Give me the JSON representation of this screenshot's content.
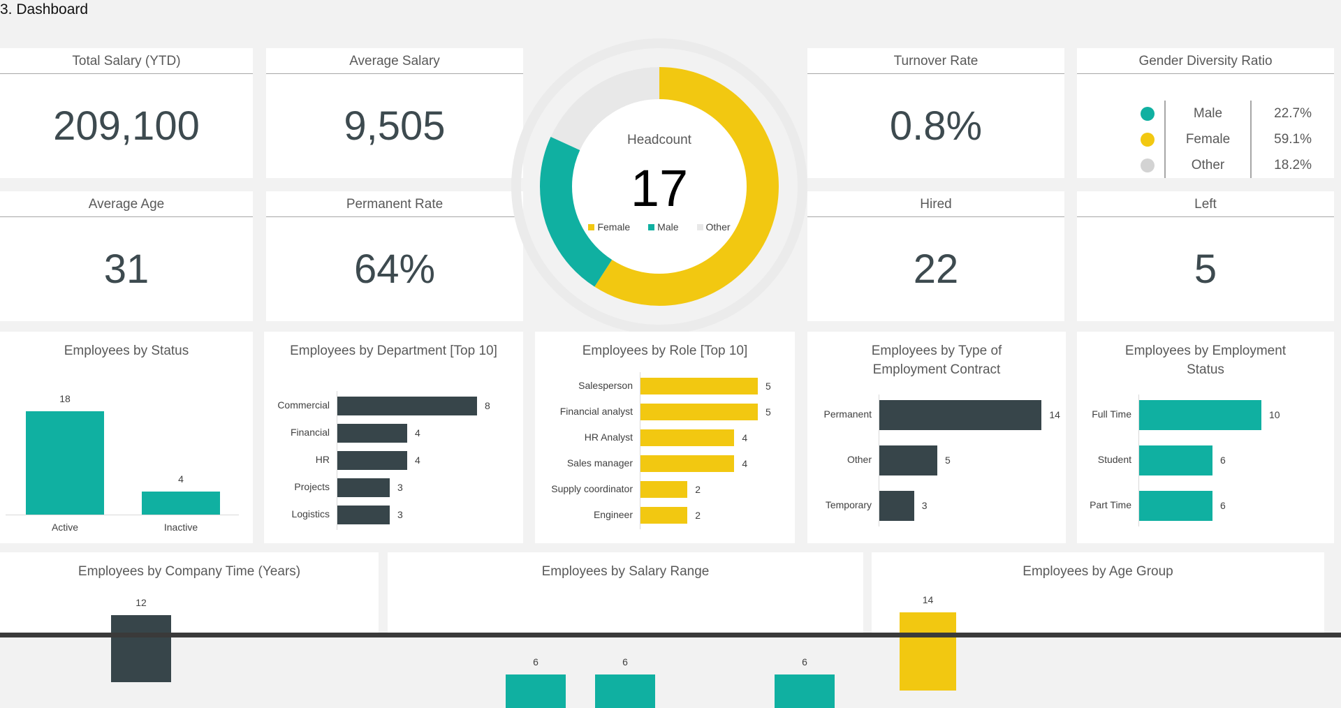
{
  "page_title": "3. Dashboard",
  "colors": {
    "teal": "#10b0a1",
    "yellow": "#f2c811",
    "dark": "#37454a",
    "grey": "#e8e8e8",
    "dot_grey": "#d3d3d3"
  },
  "kpis": {
    "total_salary": {
      "title": "Total Salary (YTD)",
      "value": "209,100"
    },
    "average_salary": {
      "title": "Average Salary",
      "value": "9,505"
    },
    "turnover_rate": {
      "title": "Turnover Rate",
      "value": "0.8%"
    },
    "average_age": {
      "title": "Average Age",
      "value": "31"
    },
    "permanent_rate": {
      "title": "Permanent Rate",
      "value": "64%"
    },
    "hired": {
      "title": "Hired",
      "value": "22"
    },
    "left": {
      "title": "Left",
      "value": "5"
    }
  },
  "gender_diversity": {
    "title": "Gender Diversity Ratio",
    "rows": [
      {
        "name": "Male",
        "pct": "22.7%",
        "color": "#10b0a1"
      },
      {
        "name": "Female",
        "pct": "59.1%",
        "color": "#f2c811"
      },
      {
        "name": "Other",
        "pct": "18.2%",
        "color": "#d3d3d3"
      }
    ]
  },
  "headcount": {
    "title": "Headcount",
    "value": "17",
    "legend": [
      "Female",
      "Male",
      "Other"
    ]
  },
  "chart_data": [
    {
      "type": "pie",
      "title": "Headcount",
      "categories": [
        "Female",
        "Male",
        "Other"
      ],
      "values": [
        59.1,
        22.7,
        18.2
      ],
      "colors": [
        "#f2c811",
        "#10b0a1",
        "#e8e8e8"
      ],
      "legend": "center"
    },
    {
      "type": "bar",
      "orientation": "vertical",
      "title": "Employees by Status",
      "categories": [
        "Active",
        "Inactive"
      ],
      "values": [
        18,
        4
      ],
      "color": "#10b0a1"
    },
    {
      "type": "bar",
      "orientation": "horizontal",
      "title": "Employees by Department [Top 10]",
      "categories": [
        "Commercial",
        "Financial",
        "HR",
        "Projects",
        "Logistics"
      ],
      "values": [
        8,
        4,
        4,
        3,
        3
      ],
      "color": "#37454a"
    },
    {
      "type": "bar",
      "orientation": "horizontal",
      "title": "Employees by Role [Top 10]",
      "categories": [
        "Salesperson",
        "Financial analyst",
        "HR Analyst",
        "Sales manager",
        "Supply coordinator",
        "Engineer"
      ],
      "values": [
        5,
        5,
        4,
        4,
        2,
        2
      ],
      "color": "#f2c811"
    },
    {
      "type": "bar",
      "orientation": "horizontal",
      "title": "Employees by Type of Employment Contract",
      "categories": [
        "Permanent",
        "Other",
        "Temporary"
      ],
      "values": [
        14,
        5,
        3
      ],
      "color": "#37454a"
    },
    {
      "type": "bar",
      "orientation": "horizontal",
      "title": "Employees by Employment Status",
      "categories": [
        "Full Time",
        "Student",
        "Part Time"
      ],
      "values": [
        10,
        6,
        6
      ],
      "color": "#10b0a1"
    },
    {
      "type": "bar",
      "orientation": "vertical",
      "title": "Employees by Company Time (Years)",
      "values": [
        12
      ],
      "color": "#37454a"
    },
    {
      "type": "bar",
      "orientation": "vertical",
      "title": "Employees by Salary Range",
      "values": [
        6,
        6,
        6
      ],
      "color": "#10b0a1"
    },
    {
      "type": "bar",
      "orientation": "vertical",
      "title": "Employees by Age Group",
      "values": [
        14
      ],
      "color": "#f2c811"
    }
  ]
}
